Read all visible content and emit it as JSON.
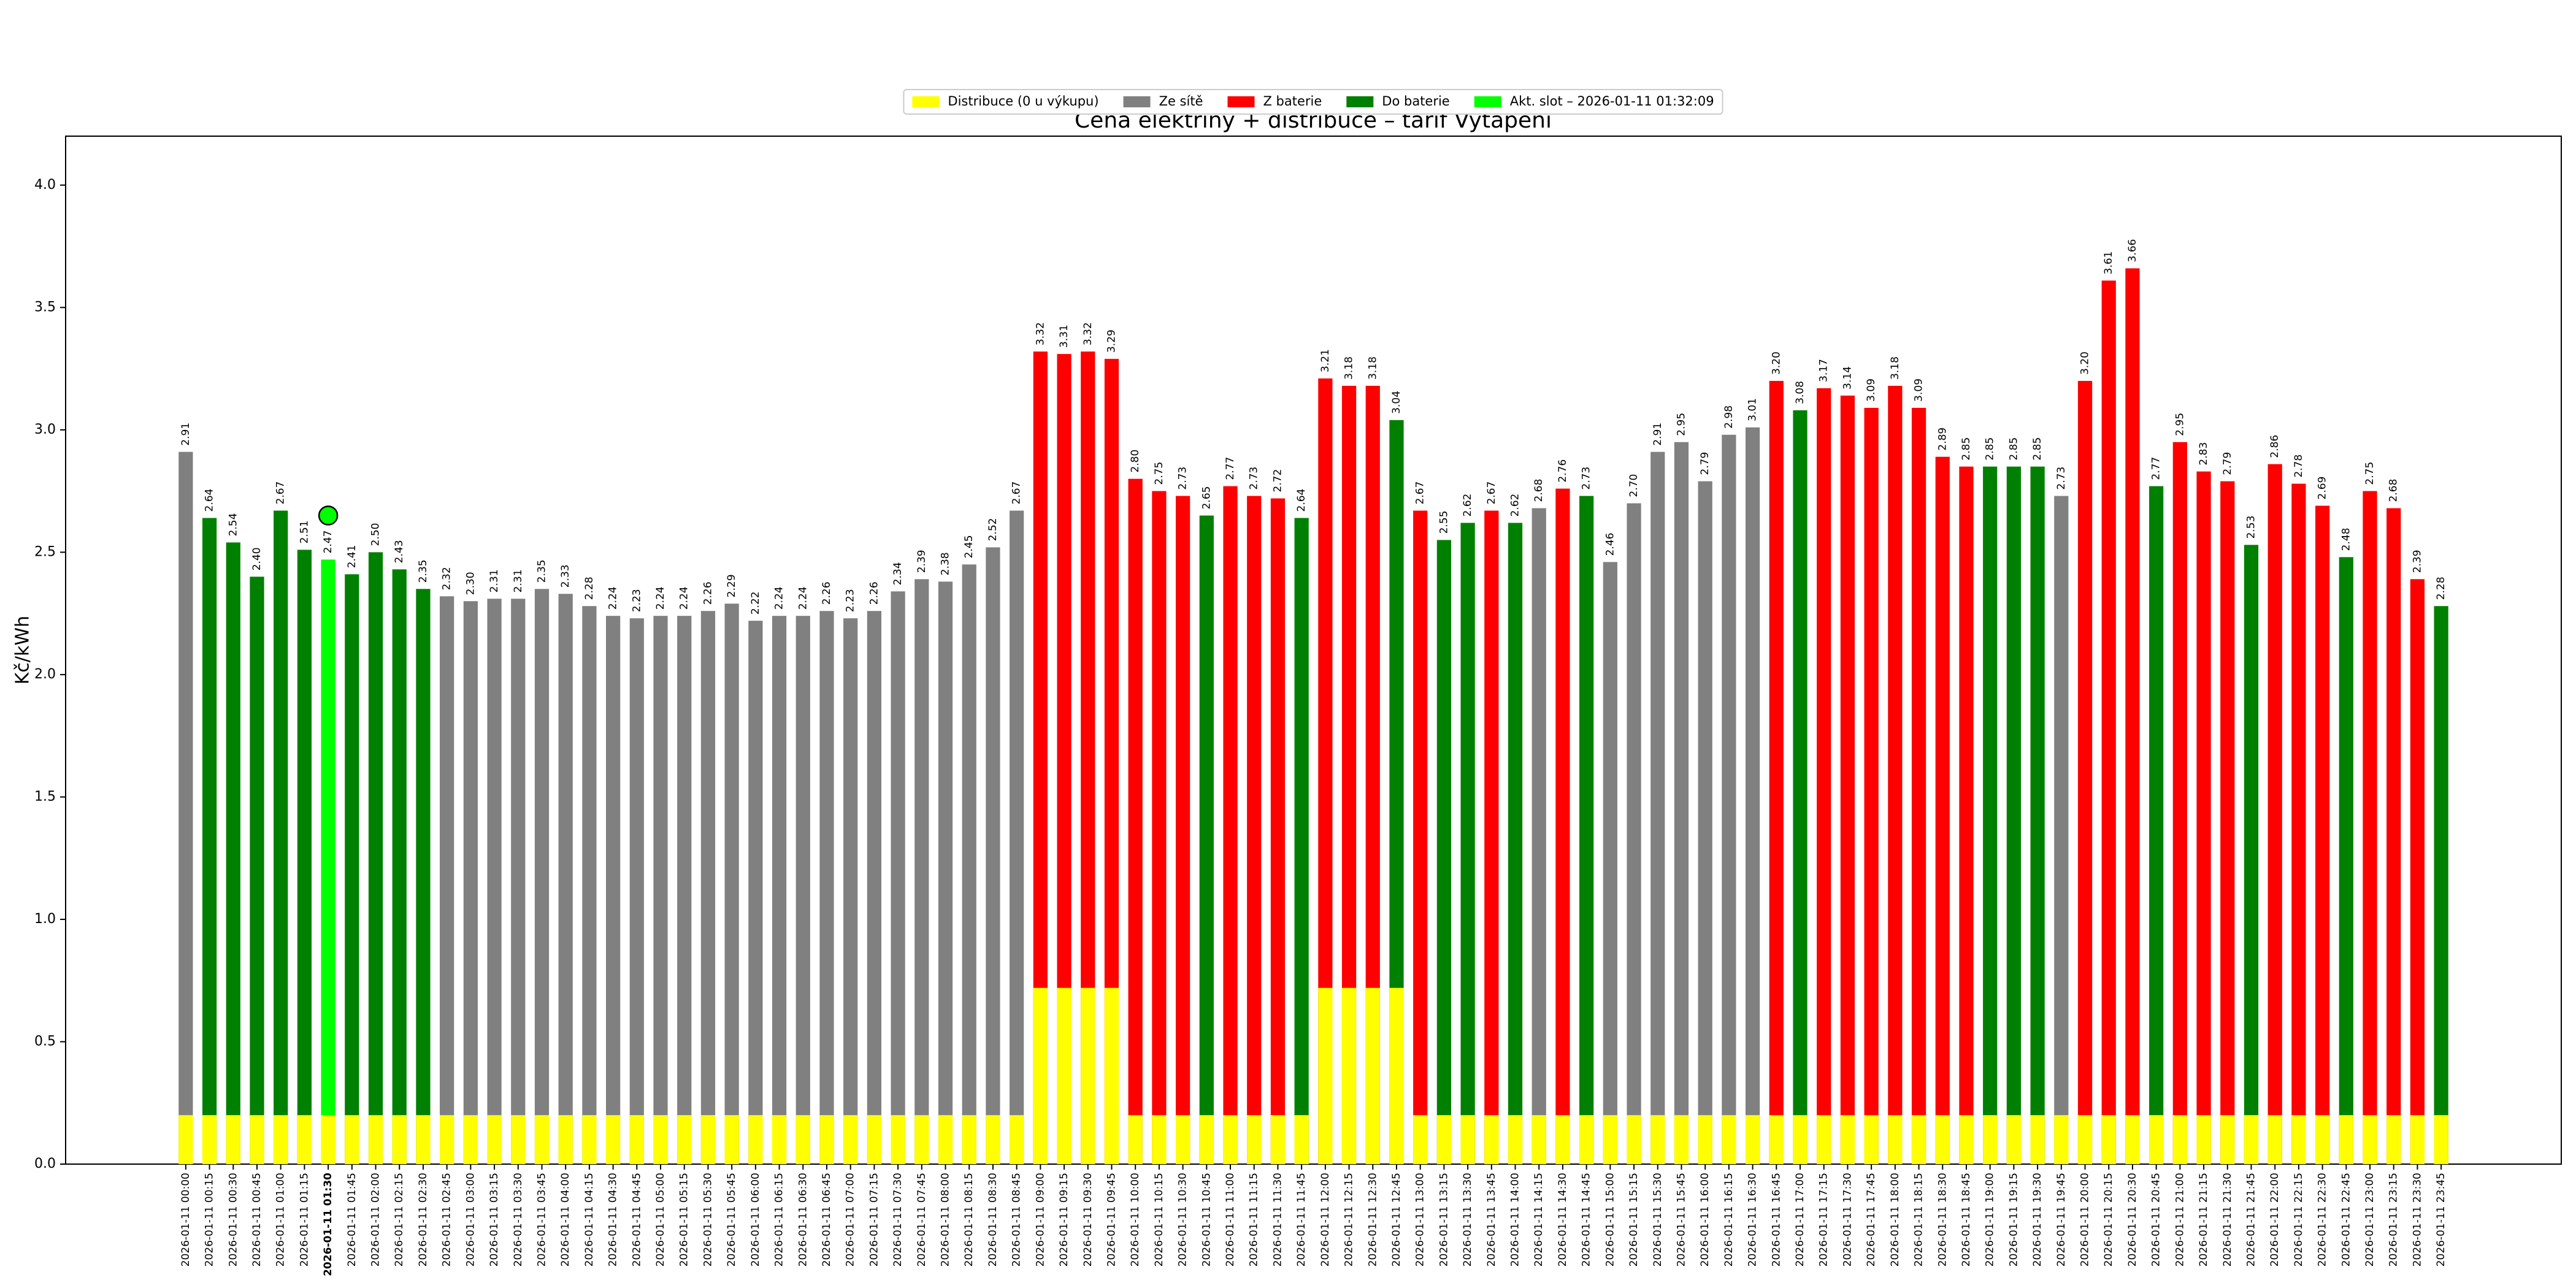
{
  "chart_data": {
    "type": "bar",
    "title": "Cena elektřiny + distribuce – tarif Vytápění",
    "ylabel": "Kč/kWh",
    "ylim": [
      0,
      4.2
    ],
    "yticks": [
      {
        "value": 0,
        "label": "0.0"
      },
      {
        "value": 0.5,
        "label": "0.5"
      },
      {
        "value": 1,
        "label": "1.0"
      },
      {
        "value": 1.5,
        "label": "1.5"
      },
      {
        "value": 2,
        "label": "2.0"
      },
      {
        "value": 2.5,
        "label": "2.5"
      },
      {
        "value": 3,
        "label": "3.0"
      },
      {
        "value": 3.5,
        "label": "3.5"
      },
      {
        "value": 4,
        "label": "4.0"
      }
    ],
    "legend": [
      {
        "name": "Distribuce (0 u výkupu)",
        "color": "#ffff00"
      },
      {
        "name": "Ze sítě",
        "color": "#808080"
      },
      {
        "name": "Z baterie",
        "color": "#ff0000"
      },
      {
        "name": "Do baterie",
        "color": "#008000"
      },
      {
        "name": "Akt. slot – 2026-01-11 01:32:09",
        "color": "#00ff00"
      }
    ],
    "current_slot": "2026-01-11 01:30",
    "current_marker_value": 2.65,
    "distribution_color": "#ffff00",
    "categories": [
      "2026-01-11 00:00",
      "2026-01-11 00:15",
      "2026-01-11 00:30",
      "2026-01-11 00:45",
      "2026-01-11 01:00",
      "2026-01-11 01:15",
      "2026-01-11 01:30",
      "2026-01-11 01:45",
      "2026-01-11 02:00",
      "2026-01-11 02:15",
      "2026-01-11 02:30",
      "2026-01-11 02:45",
      "2026-01-11 03:00",
      "2026-01-11 03:15",
      "2026-01-11 03:30",
      "2026-01-11 03:45",
      "2026-01-11 04:00",
      "2026-01-11 04:15",
      "2026-01-11 04:30",
      "2026-01-11 04:45",
      "2026-01-11 05:00",
      "2026-01-11 05:15",
      "2026-01-11 05:30",
      "2026-01-11 05:45",
      "2026-01-11 06:00",
      "2026-01-11 06:15",
      "2026-01-11 06:30",
      "2026-01-11 06:45",
      "2026-01-11 07:00",
      "2026-01-11 07:15",
      "2026-01-11 07:30",
      "2026-01-11 07:45",
      "2026-01-11 08:00",
      "2026-01-11 08:15",
      "2026-01-11 08:30",
      "2026-01-11 08:45",
      "2026-01-11 09:00",
      "2026-01-11 09:15",
      "2026-01-11 09:30",
      "2026-01-11 09:45",
      "2026-01-11 10:00",
      "2026-01-11 10:15",
      "2026-01-11 10:30",
      "2026-01-11 10:45",
      "2026-01-11 11:00",
      "2026-01-11 11:15",
      "2026-01-11 11:30",
      "2026-01-11 11:45",
      "2026-01-11 12:00",
      "2026-01-11 12:15",
      "2026-01-11 12:30",
      "2026-01-11 12:45",
      "2026-01-11 13:00",
      "2026-01-11 13:15",
      "2026-01-11 13:30",
      "2026-01-11 13:45",
      "2026-01-11 14:00",
      "2026-01-11 14:15",
      "2026-01-11 14:30",
      "2026-01-11 14:45",
      "2026-01-11 15:00",
      "2026-01-11 15:15",
      "2026-01-11 15:30",
      "2026-01-11 15:45",
      "2026-01-11 16:00",
      "2026-01-11 16:15",
      "2026-01-11 16:30",
      "2026-01-11 16:45",
      "2026-01-11 17:00",
      "2026-01-11 17:15",
      "2026-01-11 17:30",
      "2026-01-11 17:45",
      "2026-01-11 18:00",
      "2026-01-11 18:15",
      "2026-01-11 18:30",
      "2026-01-11 18:45",
      "2026-01-11 19:00",
      "2026-01-11 19:15",
      "2026-01-11 19:30",
      "2026-01-11 19:45",
      "2026-01-11 20:00",
      "2026-01-11 20:15",
      "2026-01-11 20:30",
      "2026-01-11 20:45",
      "2026-01-11 21:00",
      "2026-01-11 21:15",
      "2026-01-11 21:30",
      "2026-01-11 21:45",
      "2026-01-11 22:00",
      "2026-01-11 22:15",
      "2026-01-11 22:30",
      "2026-01-11 22:45",
      "2026-01-11 23:00",
      "2026-01-11 23:15",
      "2026-01-11 23:30",
      "2026-01-11 23:45"
    ],
    "values": [
      2.91,
      2.64,
      2.54,
      2.4,
      2.67,
      2.51,
      2.47,
      2.41,
      2.5,
      2.43,
      2.35,
      2.32,
      2.3,
      2.31,
      2.31,
      2.35,
      2.33,
      2.28,
      2.24,
      2.23,
      2.24,
      2.24,
      2.26,
      2.29,
      2.22,
      2.24,
      2.24,
      2.26,
      2.23,
      2.26,
      2.34,
      2.39,
      2.38,
      2.45,
      2.52,
      2.67,
      3.32,
      3.31,
      3.32,
      3.29,
      2.8,
      2.75,
      2.73,
      2.65,
      2.77,
      2.73,
      2.72,
      2.64,
      3.21,
      3.18,
      3.18,
      3.04,
      2.67,
      2.55,
      2.62,
      2.67,
      2.62,
      2.68,
      2.76,
      2.73,
      2.46,
      2.7,
      2.91,
      2.95,
      2.79,
      2.98,
      3.01,
      3.2,
      3.08,
      3.17,
      3.14,
      3.09,
      3.18,
      3.09,
      2.89,
      2.85,
      2.85,
      2.85,
      2.85,
      2.73,
      3.2,
      3.61,
      3.66,
      2.77,
      2.95,
      2.83,
      2.79,
      2.53,
      2.86,
      2.78,
      2.69,
      2.48,
      2.75,
      2.68,
      2.39,
      2.28
    ],
    "value_labels": [
      "2.91",
      "2.64",
      "2.54",
      "2.40",
      "2.67",
      "2.51",
      "2.47",
      "2.41",
      "2.50",
      "2.43",
      "2.35",
      "2.32",
      "2.30",
      "2.31",
      "2.31",
      "2.35",
      "2.33",
      "2.28",
      "2.24",
      "2.23",
      "2.24",
      "2.24",
      "2.26",
      "2.29",
      "2.22",
      "2.24",
      "2.24",
      "2.26",
      "2.23",
      "2.26",
      "2.34",
      "2.39",
      "2.38",
      "2.45",
      "2.52",
      "2.67",
      "3.32",
      "3.31",
      "3.32",
      "3.29",
      "2.80",
      "2.75",
      "2.73",
      "2.65",
      "2.77",
      "2.73",
      "2.72",
      "2.64",
      "3.21",
      "3.18",
      "3.18",
      "3.04",
      "2.67",
      "2.55",
      "2.62",
      "2.67",
      "2.62",
      "2.68",
      "2.76",
      "2.73",
      "2.46",
      "2.70",
      "2.91",
      "2.95",
      "2.79",
      "2.98",
      "3.01",
      "3.20",
      "3.08",
      "3.17",
      "3.14",
      "3.09",
      "3.18",
      "3.09",
      "2.89",
      "2.85",
      "2.85",
      "2.85",
      "2.85",
      "2.73",
      "3.20",
      "3.61",
      "3.66",
      "2.77",
      "2.95",
      "2.83",
      "2.79",
      "2.53",
      "2.86",
      "2.78",
      "2.69",
      "2.48",
      "2.75",
      "2.68",
      "2.39",
      "2.28"
    ],
    "bar_colors": [
      "#808080",
      "#008000",
      "#008000",
      "#008000",
      "#008000",
      "#008000",
      "#00ff00",
      "#008000",
      "#008000",
      "#008000",
      "#008000",
      "#808080",
      "#808080",
      "#808080",
      "#808080",
      "#808080",
      "#808080",
      "#808080",
      "#808080",
      "#808080",
      "#808080",
      "#808080",
      "#808080",
      "#808080",
      "#808080",
      "#808080",
      "#808080",
      "#808080",
      "#808080",
      "#808080",
      "#808080",
      "#808080",
      "#808080",
      "#808080",
      "#808080",
      "#808080",
      "#ff0000",
      "#ff0000",
      "#ff0000",
      "#ff0000",
      "#ff0000",
      "#ff0000",
      "#ff0000",
      "#008000",
      "#ff0000",
      "#ff0000",
      "#ff0000",
      "#008000",
      "#ff0000",
      "#ff0000",
      "#ff0000",
      "#008000",
      "#ff0000",
      "#008000",
      "#008000",
      "#ff0000",
      "#008000",
      "#808080",
      "#ff0000",
      "#008000",
      "#808080",
      "#808080",
      "#808080",
      "#808080",
      "#808080",
      "#808080",
      "#808080",
      "#ff0000",
      "#008000",
      "#ff0000",
      "#ff0000",
      "#ff0000",
      "#ff0000",
      "#ff0000",
      "#ff0000",
      "#ff0000",
      "#008000",
      "#008000",
      "#008000",
      "#808080",
      "#ff0000",
      "#ff0000",
      "#ff0000",
      "#008000",
      "#ff0000",
      "#ff0000",
      "#ff0000",
      "#008000",
      "#ff0000",
      "#ff0000",
      "#ff0000",
      "#008000",
      "#ff0000",
      "#ff0000",
      "#ff0000",
      "#008000"
    ],
    "distribution": [
      0.2,
      0.2,
      0.2,
      0.2,
      0.2,
      0.2,
      0.2,
      0.2,
      0.2,
      0.2,
      0.2,
      0.2,
      0.2,
      0.2,
      0.2,
      0.2,
      0.2,
      0.2,
      0.2,
      0.2,
      0.2,
      0.2,
      0.2,
      0.2,
      0.2,
      0.2,
      0.2,
      0.2,
      0.2,
      0.2,
      0.2,
      0.2,
      0.2,
      0.2,
      0.2,
      0.2,
      0.72,
      0.72,
      0.72,
      0.72,
      0.2,
      0.2,
      0.2,
      0.2,
      0.2,
      0.2,
      0.2,
      0.2,
      0.72,
      0.72,
      0.72,
      0.72,
      0.2,
      0.2,
      0.2,
      0.2,
      0.2,
      0.2,
      0.2,
      0.2,
      0.2,
      0.2,
      0.2,
      0.2,
      0.2,
      0.2,
      0.2,
      0.2,
      0.2,
      0.2,
      0.2,
      0.2,
      0.2,
      0.2,
      0.2,
      0.2,
      0.2,
      0.2,
      0.2,
      0.2,
      0.2,
      0.2,
      0.2,
      0.2,
      0.2,
      0.2,
      0.2,
      0.2,
      0.2,
      0.2,
      0.2,
      0.2,
      0.2,
      0.2,
      0.2,
      0.2
    ]
  }
}
